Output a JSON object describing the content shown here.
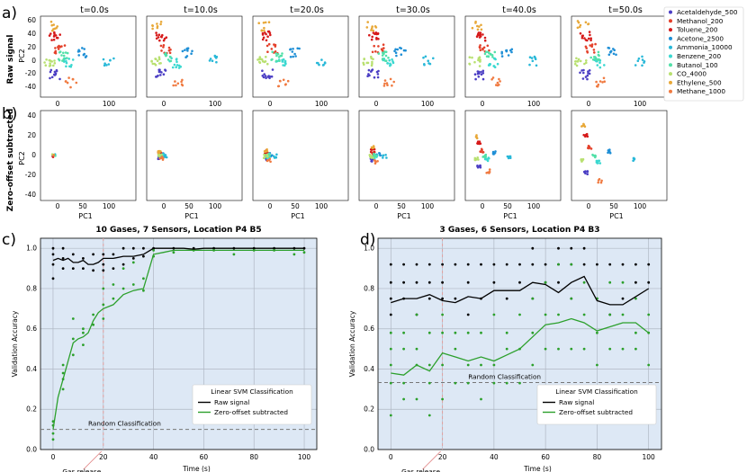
{
  "figure": {
    "panel_labels": [
      "a)",
      "b)",
      "c)",
      "d)"
    ],
    "row_labels": {
      "raw": "Raw signal",
      "zero": "Zero-offset subtracted"
    },
    "time_titles": [
      "t=0.0s",
      "t=10.0s",
      "t=20.0s",
      "t=30.0s",
      "t=40.0s",
      "t=50.0s"
    ],
    "pca_axes": {
      "x_label": "PC1",
      "y_label": "PC2",
      "x_ticks": [
        "0",
        "50",
        "100"
      ],
      "raw_x_ticks": [
        "0",
        "100"
      ],
      "y_ticks": [
        "-40",
        "-20",
        "0",
        "20",
        "40",
        "60"
      ],
      "zero_y_ticks": [
        "-40",
        "-20",
        "0",
        "20",
        "40"
      ]
    },
    "legend": [
      {
        "label": "Acetaldehyde_500",
        "color": "#4b3ec4"
      },
      {
        "label": "Methanol_200",
        "color": "#e4402a"
      },
      {
        "label": "Toluene_200",
        "color": "#d61a1a"
      },
      {
        "label": "Acetone_2500",
        "color": "#1f8fd6"
      },
      {
        "label": "Ammonia_10000",
        "color": "#28b8d8"
      },
      {
        "label": "Benzene_200",
        "color": "#3ad8d0"
      },
      {
        "label": "Butanol_100",
        "color": "#52e0a8"
      },
      {
        "label": "CO_4000",
        "color": "#b8e070"
      },
      {
        "label": "Ethylene_500",
        "color": "#e8a838"
      },
      {
        "label": "Methane_1000",
        "color": "#f07a40"
      }
    ]
  },
  "chart_data": [
    {
      "type": "line",
      "title": "10 Gases, 7 Sensors, Location P4 B5",
      "xlabel": "Time (s)",
      "ylabel": "Validation Accuracy",
      "xlim": [
        -5,
        105
      ],
      "ylim": [
        0,
        1.05
      ],
      "x_ticks": [
        0,
        20,
        40,
        60,
        80,
        100
      ],
      "y_ticks": [
        0.0,
        0.2,
        0.4,
        0.6,
        0.8,
        1.0
      ],
      "x_tick_labels": [
        "0",
        "20",
        "40",
        "60",
        "80",
        "100"
      ],
      "y_tick_labels": [
        "0.0",
        "0.2",
        "0.4",
        "0.6",
        "0.8",
        "1.0"
      ],
      "series": [
        {
          "name": "Raw signal",
          "color": "#000000",
          "x": [
            0,
            2,
            4,
            6,
            8,
            10,
            12,
            14,
            16,
            18,
            20,
            24,
            28,
            32,
            36,
            40,
            44,
            48,
            52,
            56,
            60,
            64,
            68,
            72,
            76,
            80,
            84,
            88,
            92,
            96,
            100
          ],
          "y": [
            0.94,
            0.95,
            0.94,
            0.95,
            0.93,
            0.93,
            0.94,
            0.92,
            0.92,
            0.93,
            0.95,
            0.95,
            0.96,
            0.96,
            0.97,
            1.0,
            1.0,
            1.0,
            1.0,
            0.995,
            1.0,
            1.0,
            1.0,
            1.0,
            1.0,
            1.0,
            1.0,
            1.0,
            1.0,
            1.0,
            1.0
          ]
        },
        {
          "name": "Zero-offset subtracted",
          "color": "#2ca02c",
          "x": [
            0,
            2,
            4,
            6,
            8,
            10,
            12,
            14,
            16,
            18,
            20,
            24,
            28,
            32,
            36,
            40,
            44,
            48,
            52,
            56,
            60,
            64,
            68,
            72,
            76,
            80,
            84,
            88,
            92,
            96,
            100
          ],
          "y": [
            0.1,
            0.26,
            0.35,
            0.44,
            0.53,
            0.55,
            0.56,
            0.58,
            0.64,
            0.68,
            0.7,
            0.72,
            0.77,
            0.79,
            0.8,
            0.97,
            0.98,
            0.99,
            0.99,
            0.99,
            0.99,
            0.99,
            0.99,
            0.99,
            0.99,
            0.99,
            0.99,
            0.99,
            0.99,
            0.99,
            0.99
          ]
        }
      ],
      "scatter_points": [
        {
          "series": "Raw signal",
          "x": [
            0,
            0,
            0,
            0,
            4,
            4,
            4,
            8,
            8,
            12,
            12,
            16,
            16,
            20,
            20,
            20,
            24,
            24,
            28,
            28,
            32,
            32,
            36,
            36,
            40,
            48,
            56,
            64,
            72,
            80,
            88,
            96,
            100
          ],
          "y": [
            1.0,
            0.97,
            0.92,
            0.85,
            1.0,
            0.95,
            0.9,
            0.97,
            0.9,
            0.95,
            0.9,
            0.97,
            0.89,
            0.97,
            0.92,
            0.89,
            0.97,
            0.9,
            1.0,
            0.92,
            1.0,
            0.95,
            1.0,
            0.96,
            1.0,
            1.0,
            1.0,
            1.0,
            1.0,
            1.0,
            1.0,
            1.0,
            1.0
          ]
        },
        {
          "series": "Zero-offset subtracted",
          "x": [
            0,
            0,
            0,
            0,
            4,
            4,
            4,
            4,
            8,
            8,
            8,
            12,
            12,
            12,
            16,
            16,
            20,
            20,
            20,
            24,
            24,
            28,
            28,
            32,
            32,
            36,
            36,
            40,
            40,
            48,
            56,
            64,
            72,
            80,
            88,
            96,
            100
          ],
          "y": [
            0.05,
            0.08,
            0.12,
            0.14,
            0.3,
            0.35,
            0.38,
            0.42,
            0.47,
            0.55,
            0.65,
            0.52,
            0.58,
            0.6,
            0.62,
            0.67,
            0.65,
            0.72,
            0.8,
            0.75,
            0.82,
            0.8,
            0.9,
            0.82,
            0.93,
            0.79,
            0.85,
            0.96,
            0.99,
            0.98,
            0.99,
            0.99,
            0.97,
            0.99,
            0.99,
            0.97,
            0.98
          ]
        }
      ],
      "hlines": [
        {
          "y": 0.1,
          "label": "Random Classification"
        }
      ],
      "vlines": [
        {
          "x": 20,
          "label": "Gas release"
        }
      ],
      "legend": {
        "title": "Linear SVM Classification",
        "placement": "lower-right",
        "entries": [
          "Raw signal",
          "Zero-offset subtracted"
        ]
      },
      "grid": true
    },
    {
      "type": "line",
      "title": "3 Gases, 6 Sensors, Location P4 B3",
      "xlabel": "Time (s)",
      "ylabel": "Validation Accuracy",
      "xlim": [
        -5,
        105
      ],
      "ylim": [
        0,
        1.05
      ],
      "x_ticks": [
        0,
        20,
        40,
        60,
        80,
        100
      ],
      "y_ticks": [
        0.0,
        0.2,
        0.4,
        0.6,
        0.8,
        1.0
      ],
      "x_tick_labels": [
        "0",
        "20",
        "40",
        "60",
        "80",
        "100"
      ],
      "y_tick_labels": [
        "0.0",
        "0.2",
        "0.4",
        "0.6",
        "0.8",
        "1.0"
      ],
      "series": [
        {
          "name": "Raw signal",
          "color": "#000000",
          "x": [
            0,
            5,
            10,
            15,
            20,
            25,
            30,
            35,
            40,
            45,
            50,
            55,
            60,
            65,
            70,
            75,
            80,
            85,
            90,
            95,
            100
          ],
          "y": [
            0.73,
            0.75,
            0.75,
            0.77,
            0.74,
            0.73,
            0.76,
            0.75,
            0.79,
            0.79,
            0.79,
            0.83,
            0.82,
            0.78,
            0.83,
            0.86,
            0.74,
            0.72,
            0.72,
            0.76,
            0.8
          ]
        },
        {
          "name": "Zero-offset subtracted",
          "color": "#2ca02c",
          "x": [
            0,
            5,
            10,
            15,
            20,
            25,
            30,
            35,
            40,
            45,
            50,
            55,
            60,
            65,
            70,
            75,
            80,
            85,
            90,
            95,
            100
          ],
          "y": [
            0.38,
            0.37,
            0.42,
            0.39,
            0.48,
            0.46,
            0.44,
            0.46,
            0.44,
            0.47,
            0.5,
            0.56,
            0.62,
            0.63,
            0.65,
            0.63,
            0.59,
            0.61,
            0.63,
            0.63,
            0.58
          ]
        }
      ],
      "scatter_points": [
        {
          "series": "Raw signal",
          "x": [
            0,
            0,
            0,
            0,
            5,
            5,
            5,
            10,
            10,
            10,
            15,
            15,
            15,
            20,
            20,
            20,
            25,
            25,
            30,
            30,
            30,
            35,
            35,
            40,
            40,
            45,
            45,
            50,
            50,
            55,
            55,
            55,
            60,
            60,
            65,
            65,
            65,
            70,
            70,
            70,
            75,
            75,
            80,
            80,
            85,
            85,
            90,
            90,
            95,
            95,
            100,
            100
          ],
          "y": [
            0.92,
            0.83,
            0.75,
            0.67,
            0.92,
            0.83,
            0.75,
            0.92,
            0.83,
            0.67,
            0.92,
            0.83,
            0.75,
            0.92,
            0.83,
            0.75,
            0.92,
            0.75,
            0.92,
            0.83,
            0.67,
            0.92,
            0.75,
            0.92,
            0.83,
            0.92,
            0.75,
            0.92,
            0.83,
            1.0,
            0.92,
            0.75,
            0.92,
            0.83,
            1.0,
            0.92,
            0.83,
            1.0,
            0.92,
            0.75,
            1.0,
            0.92,
            0.92,
            0.75,
            0.92,
            0.67,
            0.92,
            0.75,
            0.92,
            0.83,
            0.92,
            0.83
          ]
        },
        {
          "series": "Zero-offset subtracted",
          "x": [
            0,
            0,
            0,
            0,
            0,
            5,
            5,
            5,
            5,
            10,
            10,
            10,
            10,
            15,
            15,
            15,
            15,
            20,
            20,
            20,
            20,
            25,
            25,
            25,
            30,
            30,
            30,
            35,
            35,
            35,
            40,
            40,
            40,
            45,
            45,
            45,
            50,
            50,
            50,
            55,
            55,
            55,
            60,
            60,
            60,
            65,
            65,
            65,
            70,
            70,
            70,
            75,
            75,
            75,
            80,
            80,
            80,
            85,
            85,
            85,
            90,
            90,
            90,
            95,
            95,
            95,
            100,
            100,
            100
          ],
          "y": [
            0.58,
            0.5,
            0.42,
            0.33,
            0.17,
            0.58,
            0.5,
            0.33,
            0.25,
            0.67,
            0.5,
            0.42,
            0.25,
            0.58,
            0.42,
            0.33,
            0.17,
            0.67,
            0.58,
            0.42,
            0.25,
            0.58,
            0.5,
            0.33,
            0.58,
            0.42,
            0.33,
            0.58,
            0.42,
            0.25,
            0.67,
            0.42,
            0.33,
            0.58,
            0.5,
            0.33,
            0.67,
            0.5,
            0.33,
            0.75,
            0.58,
            0.42,
            0.83,
            0.67,
            0.5,
            0.92,
            0.67,
            0.5,
            0.92,
            0.75,
            0.5,
            0.83,
            0.67,
            0.5,
            0.75,
            0.58,
            0.42,
            0.83,
            0.67,
            0.5,
            0.83,
            0.67,
            0.5,
            0.75,
            0.58,
            0.5,
            0.67,
            0.58,
            0.42
          ]
        }
      ],
      "hlines": [
        {
          "y": 0.333,
          "label": "Random Classification"
        }
      ],
      "vlines": [
        {
          "x": 20,
          "label": "Gas release"
        }
      ],
      "legend": {
        "title": "Linear SVM Classification",
        "placement": "lower-right",
        "entries": [
          "Raw signal",
          "Zero-offset subtracted"
        ]
      },
      "grid": true
    }
  ]
}
